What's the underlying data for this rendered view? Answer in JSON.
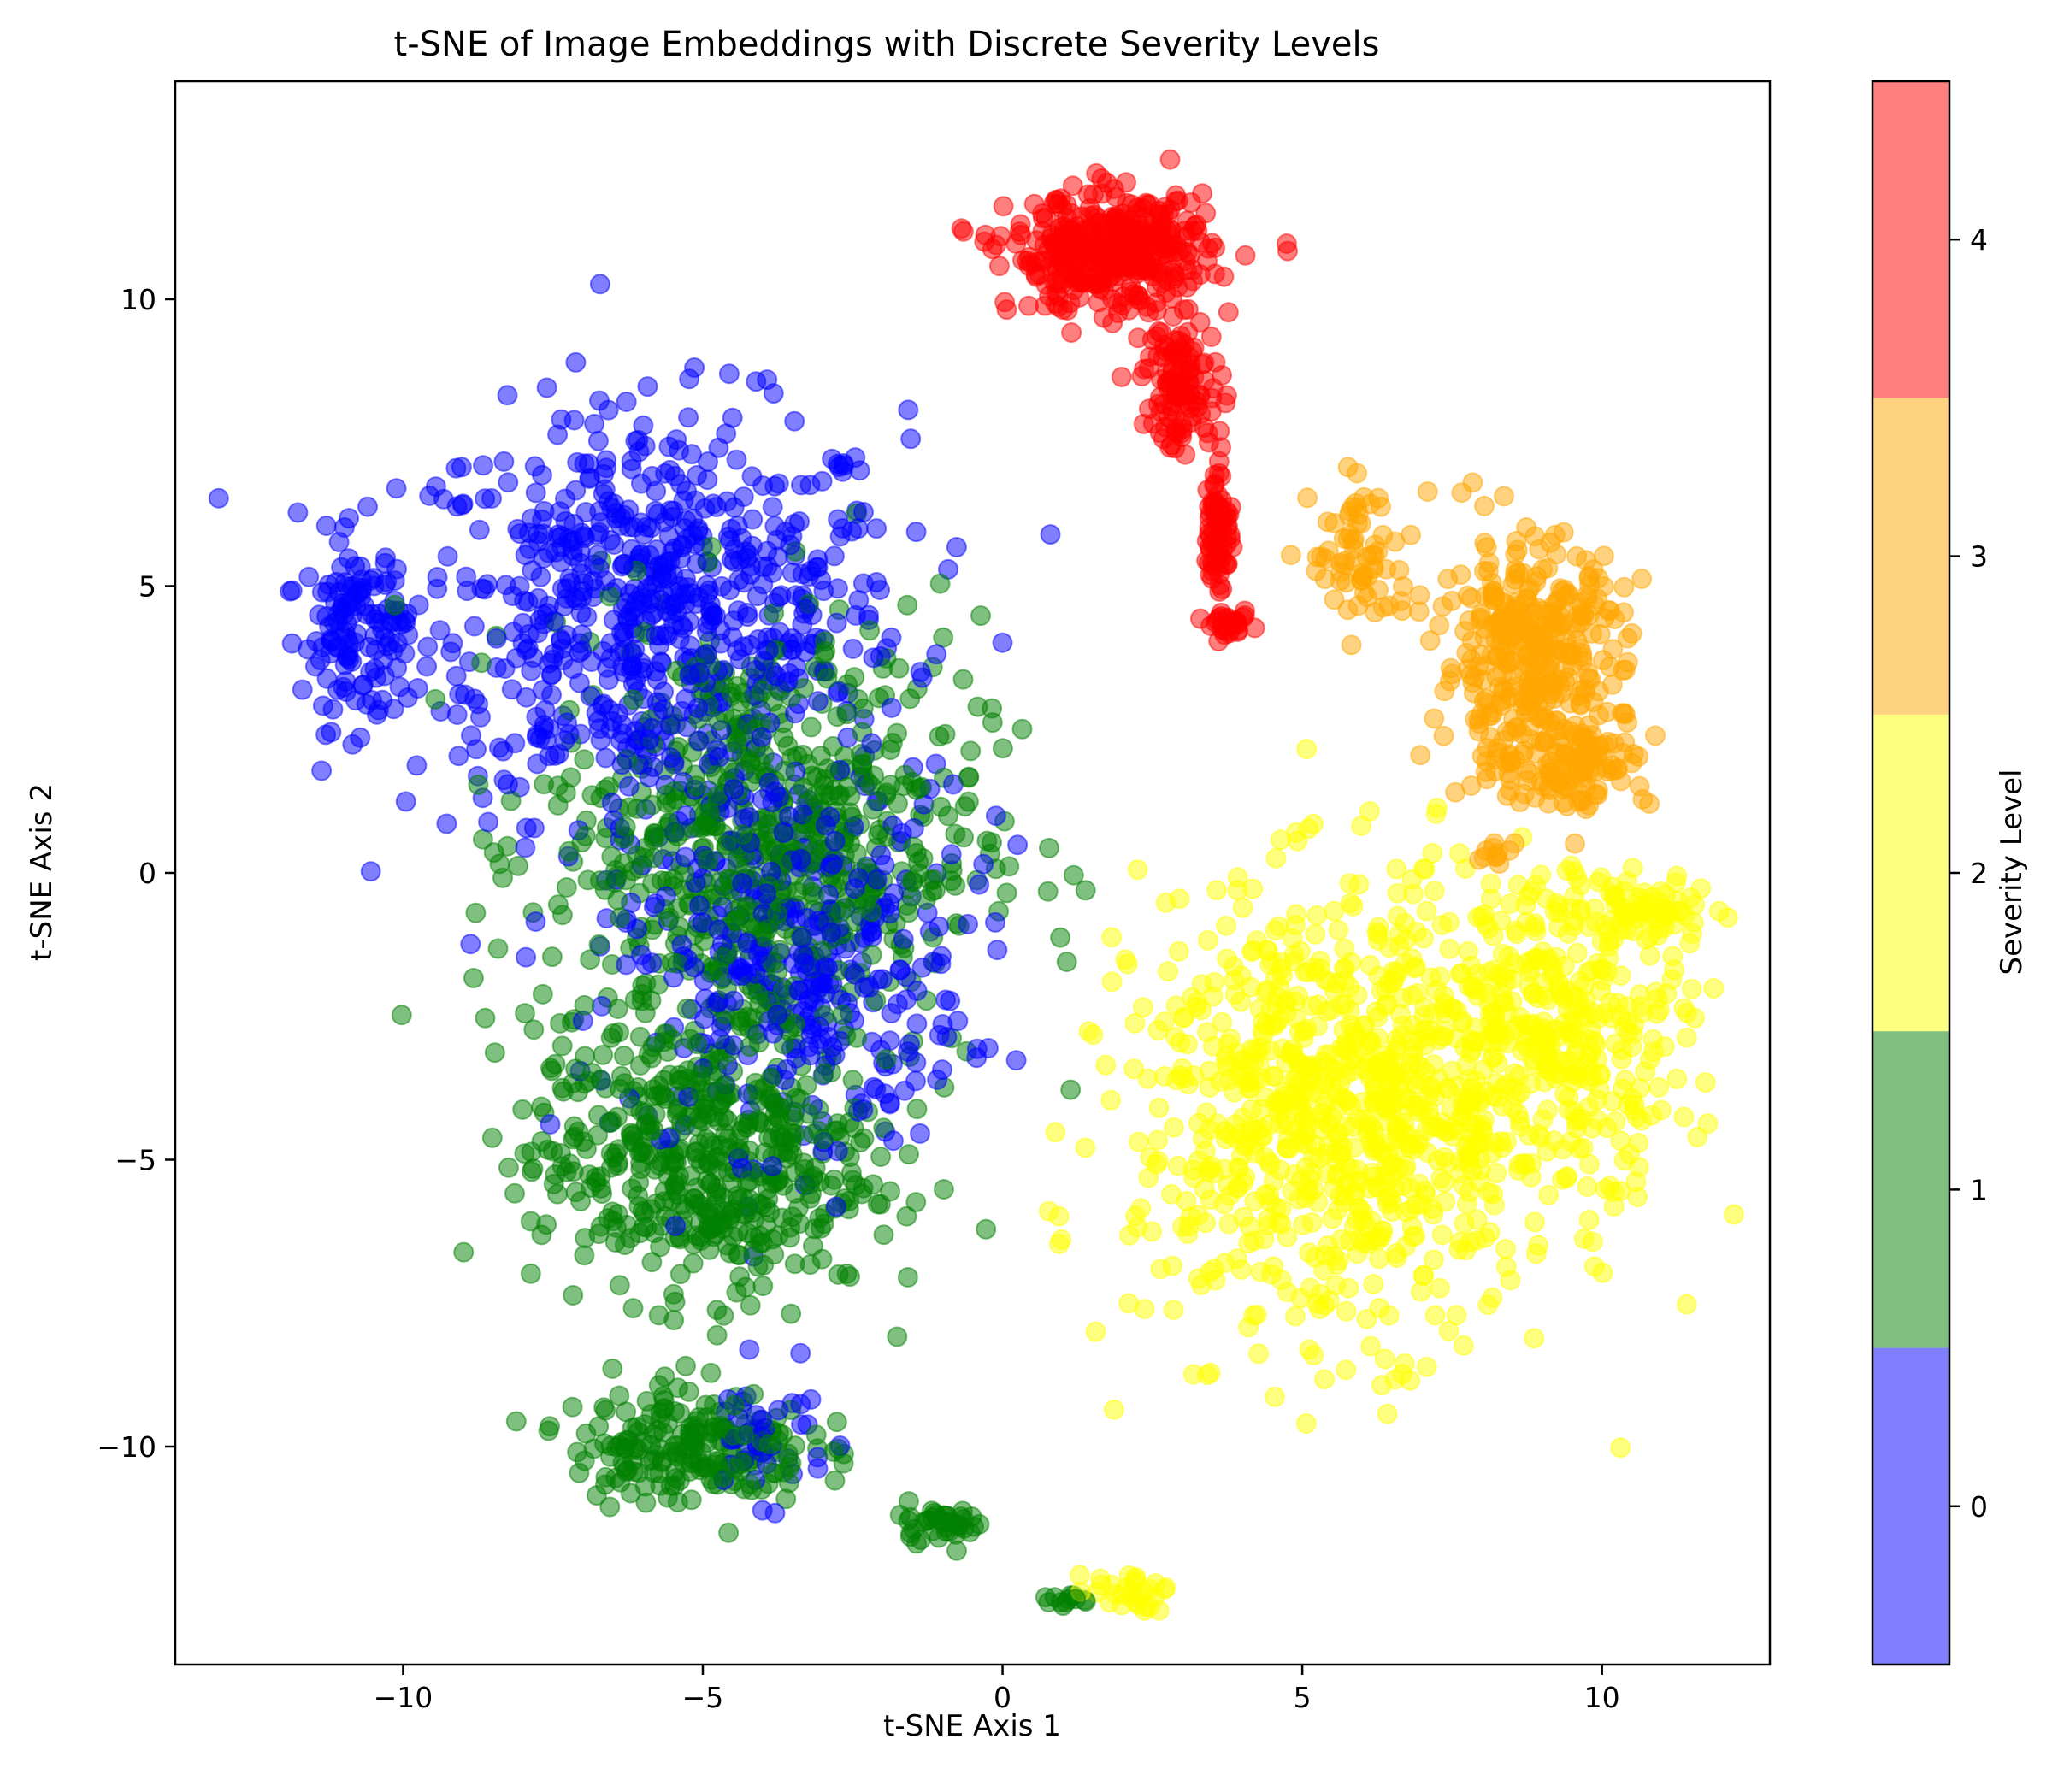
{
  "chart_data": {
    "type": "scatter",
    "title": "t-SNE of Image Embeddings with Discrete Severity Levels",
    "xlabel": "t-SNE Axis 1",
    "ylabel": "t-SNE Axis 2",
    "xlim": [
      -13.8,
      12.8
    ],
    "ylim": [
      -13.8,
      13.8
    ],
    "xticks": [
      -10,
      -5,
      0,
      5,
      10
    ],
    "xtick_labels": [
      "−10",
      "−5",
      "0",
      "5",
      "10"
    ],
    "yticks": [
      -10,
      -5,
      0,
      5,
      10
    ],
    "ytick_labels": [
      "−10",
      "−5",
      "0",
      "5",
      "10"
    ],
    "grid": false,
    "marker_alpha": 0.5,
    "colorbar": {
      "label": "Severity Level",
      "range": [
        -0.5,
        4.5
      ],
      "ticks": [
        0,
        1,
        2,
        3,
        4
      ],
      "tick_labels": [
        "0",
        "1",
        "2",
        "3",
        "4"
      ],
      "colors": [
        "#0000ff",
        "#008000",
        "#ffff00",
        "#ffa500",
        "#ff0000"
      ]
    },
    "series": [
      {
        "level": 0,
        "color": "#0000ff",
        "clusters": [
          {
            "cx": -5.8,
            "cy": 4.5,
            "sx": 3.8,
            "sy": 3.2,
            "n": 700
          },
          {
            "cx": -3.5,
            "cy": -1.5,
            "sx": 2.6,
            "sy": 3.0,
            "n": 400
          },
          {
            "cx": -10.8,
            "cy": 4.2,
            "sx": 0.8,
            "sy": 1.5,
            "n": 120
          },
          {
            "cx": -4.0,
            "cy": -9.8,
            "sx": 1.0,
            "sy": 1.0,
            "n": 40
          }
        ]
      },
      {
        "level": 1,
        "color": "#008000",
        "clusters": [
          {
            "cx": -4.0,
            "cy": 0.5,
            "sx": 3.3,
            "sy": 3.6,
            "n": 700
          },
          {
            "cx": -5.0,
            "cy": -5.0,
            "sx": 2.6,
            "sy": 2.2,
            "n": 500
          },
          {
            "cx": -5.2,
            "cy": -10.0,
            "sx": 1.8,
            "sy": 0.9,
            "n": 200
          },
          {
            "cx": -1.0,
            "cy": -11.3,
            "sx": 0.7,
            "sy": 0.3,
            "n": 40
          },
          {
            "cx": 1.0,
            "cy": -12.7,
            "sx": 0.4,
            "sy": 0.1,
            "n": 12
          }
        ]
      },
      {
        "level": 2,
        "color": "#ffff00",
        "clusters": [
          {
            "cx": 5.8,
            "cy": -4.2,
            "sx": 3.2,
            "sy": 3.5,
            "n": 900
          },
          {
            "cx": 9.5,
            "cy": -2.5,
            "sx": 1.8,
            "sy": 2.4,
            "n": 300
          },
          {
            "cx": 10.8,
            "cy": -0.7,
            "sx": 1.0,
            "sy": 0.5,
            "n": 60
          },
          {
            "cx": 2.0,
            "cy": -12.5,
            "sx": 0.7,
            "sy": 0.3,
            "n": 30
          }
        ]
      },
      {
        "level": 3,
        "color": "#ffa500",
        "clusters": [
          {
            "cx": 8.8,
            "cy": 3.8,
            "sx": 1.4,
            "sy": 1.8,
            "n": 350
          },
          {
            "cx": 9.5,
            "cy": 2.0,
            "sx": 1.2,
            "sy": 0.8,
            "n": 120
          },
          {
            "cx": 6.0,
            "cy": 5.5,
            "sx": 0.8,
            "sy": 1.2,
            "n": 70
          },
          {
            "cx": 8.2,
            "cy": 0.3,
            "sx": 0.3,
            "sy": 0.3,
            "n": 10
          }
        ]
      },
      {
        "level": 4,
        "color": "#ff0000",
        "clusters": [
          {
            "cx": 1.8,
            "cy": 10.8,
            "sx": 1.5,
            "sy": 0.9,
            "n": 400
          },
          {
            "cx": 3.0,
            "cy": 8.5,
            "sx": 0.6,
            "sy": 1.0,
            "n": 120
          },
          {
            "cx": 3.6,
            "cy": 6.0,
            "sx": 0.2,
            "sy": 1.0,
            "n": 80
          },
          {
            "cx": 3.8,
            "cy": 4.3,
            "sx": 0.3,
            "sy": 0.2,
            "n": 30
          }
        ]
      }
    ]
  }
}
